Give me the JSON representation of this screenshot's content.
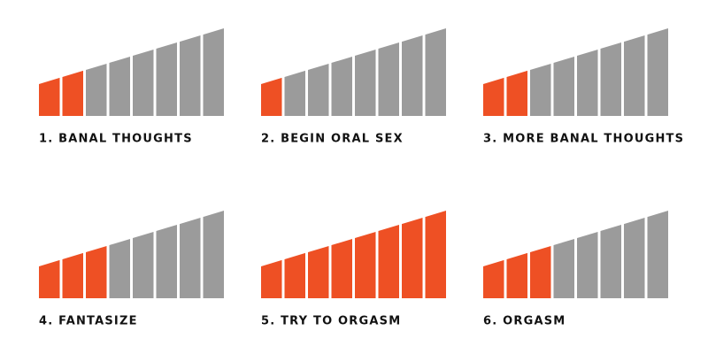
{
  "segments": 8,
  "colors": {
    "active": "#ee5024",
    "inactive": "#9b9b9b"
  },
  "panels": [
    {
      "label": "1. BANAL THOUGHTS",
      "level": 2
    },
    {
      "label": "2. BEGIN ORAL SEX",
      "level": 1
    },
    {
      "label": "3. MORE BANAL THOUGHTS",
      "level": 2
    },
    {
      "label": "4. FANTASIZE",
      "level": 3
    },
    {
      "label": "5. TRY TO ORGASM",
      "level": 8
    },
    {
      "label": "6. ORGASM",
      "level": 3
    }
  ]
}
